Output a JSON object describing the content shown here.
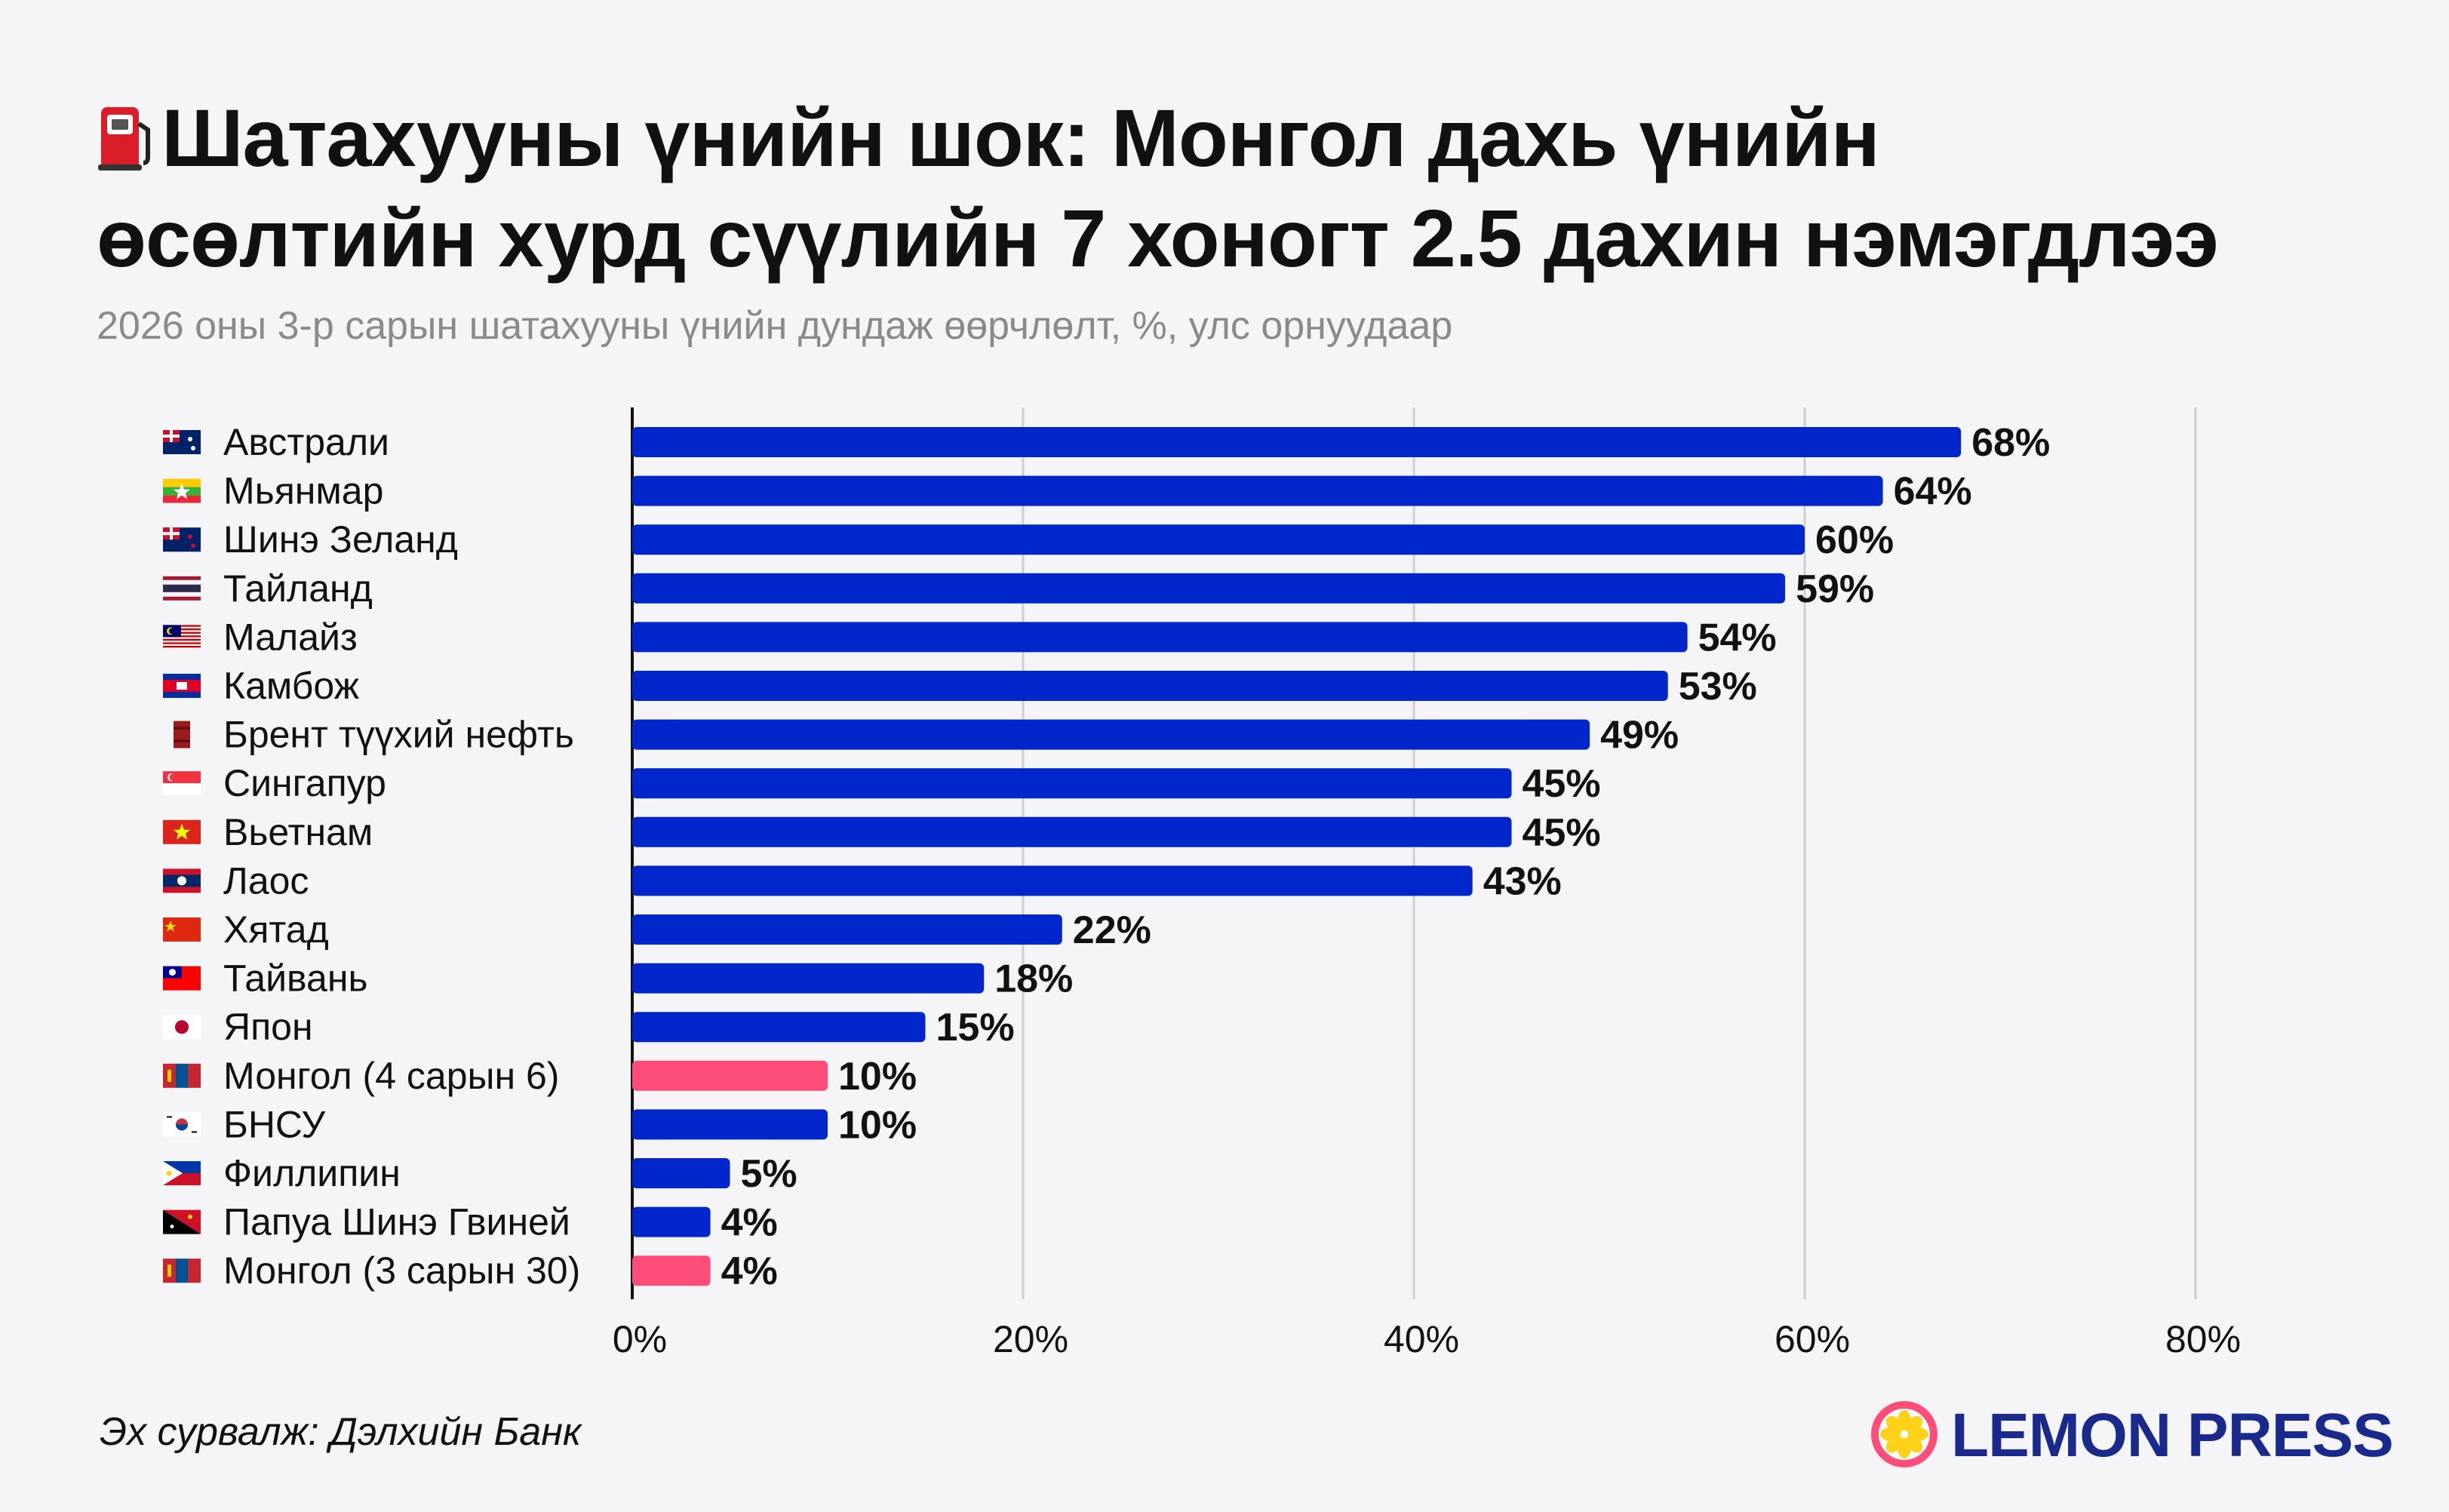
{
  "title_line1": "Шатахууны үнийн шок: Монгол дахь үнийн",
  "title_line2": "өсөлтийн хурд сүүлийн 7 хоногт 2.5 дахин нэмэгдлээ",
  "subtitle": "2026 оны 3-р сарын шатахууны үнийн дундаж өөрчлөлт, %, улс орнуудаар",
  "source": "Эх сурвалж: Дэлхийн Банк",
  "brand": "LEMON PRESS",
  "colors": {
    "bar": "#0026cc",
    "highlight": "#ff4d7a",
    "grid": "#cfcfcf",
    "axis": "#111111"
  },
  "chart_data": {
    "type": "bar",
    "orientation": "horizontal",
    "title": "Шатахууны үнийн шок: Монгол дахь үнийн өсөлтийн хурд сүүлийн 7 хоногт 2.5 дахин нэмэгдлээ",
    "xlabel": "",
    "ylabel": "",
    "xlim": [
      0,
      80
    ],
    "ticks": [
      0,
      20,
      40,
      60,
      80
    ],
    "tick_labels": [
      "0%",
      "20%",
      "40%",
      "60%",
      "80%"
    ],
    "grid": true,
    "categories": [
      "Австрали",
      "Мьянмар",
      "Шинэ Зеланд",
      "Тайланд",
      "Малайз",
      "Камбож",
      "Брент түүхий нефть",
      "Сингапур",
      "Вьетнам",
      "Лаос",
      "Хятад",
      "Тайвань",
      "Япон",
      "Монгол (4 сарын 6)",
      "БНСУ",
      "Филлипин",
      "Папуа Шинэ Гвиней",
      "Монгол (3 сарын 30)"
    ],
    "values": [
      68,
      64,
      60,
      59,
      54,
      53,
      49,
      45,
      45,
      43,
      22,
      18,
      15,
      10,
      10,
      5,
      4,
      4
    ],
    "value_labels": [
      "68%",
      "64%",
      "60%",
      "59%",
      "54%",
      "53%",
      "49%",
      "45%",
      "45%",
      "43%",
      "22%",
      "18%",
      "15%",
      "10%",
      "10%",
      "5%",
      "4%",
      "4%"
    ],
    "icons": [
      "flag-australia",
      "flag-myanmar",
      "flag-new-zealand",
      "flag-thailand",
      "flag-malaysia",
      "flag-cambodia",
      "oil-barrel",
      "flag-singapore",
      "flag-vietnam",
      "flag-laos",
      "flag-china",
      "flag-taiwan",
      "flag-japan",
      "flag-mongolia",
      "flag-south-korea",
      "flag-philippines",
      "flag-papua-new-guinea",
      "flag-mongolia"
    ],
    "highlighted": [
      false,
      false,
      false,
      false,
      false,
      false,
      false,
      false,
      false,
      false,
      false,
      false,
      false,
      true,
      false,
      false,
      false,
      true
    ]
  }
}
